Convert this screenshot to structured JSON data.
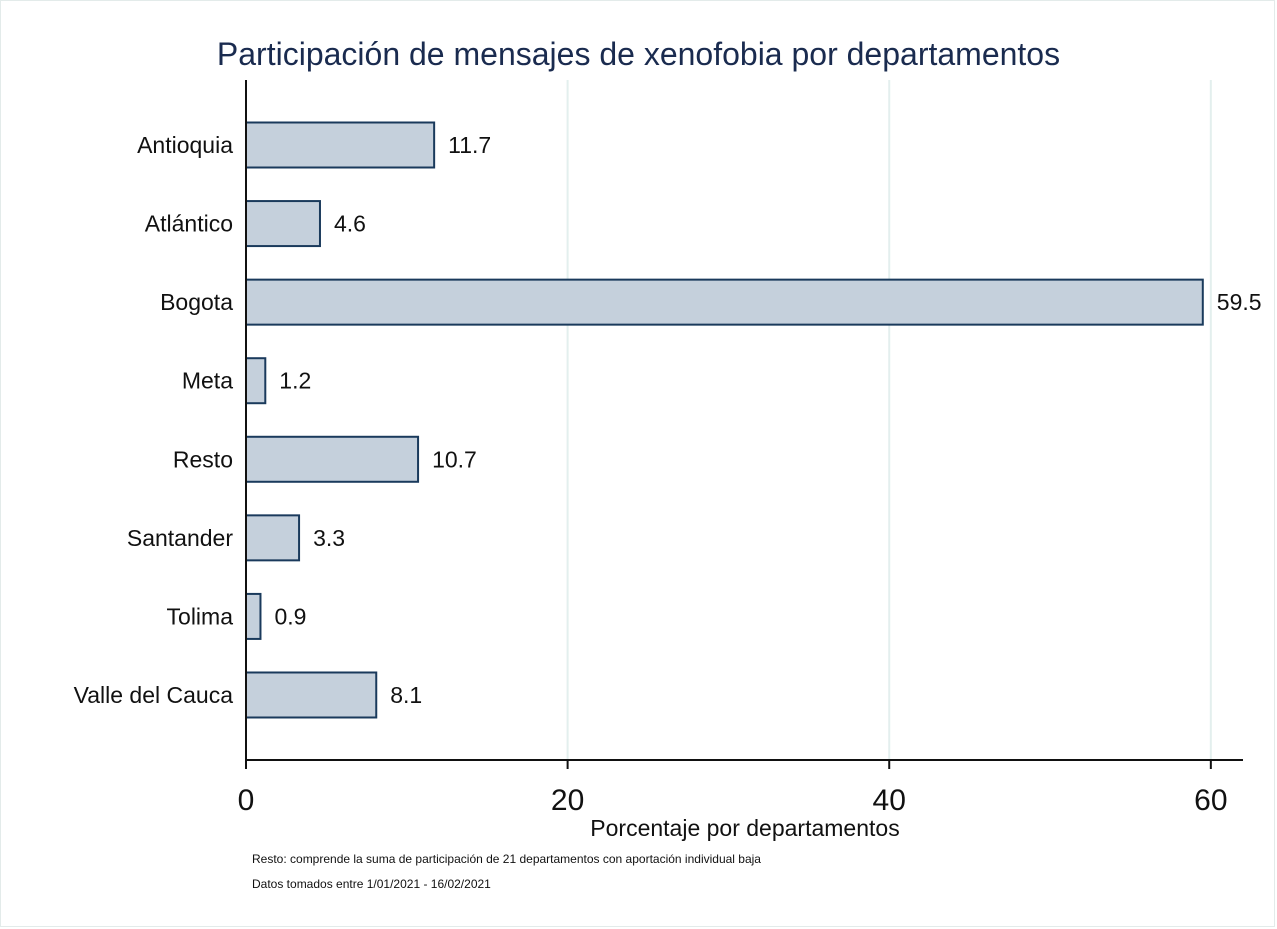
{
  "chart_data": {
    "type": "bar",
    "orientation": "horizontal",
    "title": "Participación de mensajes de xenofobia por departamentos",
    "xlabel": "Porcentaje por departamentos",
    "ylabel": "",
    "categories": [
      "Antioquia",
      "Atlántico",
      "Bogota",
      "Meta",
      "Resto",
      "Santander",
      "Tolima",
      "Valle del Cauca"
    ],
    "values": [
      11.7,
      4.6,
      59.5,
      1.2,
      10.7,
      3.3,
      0.9,
      8.1
    ],
    "value_labels": [
      "11.7",
      "4.6",
      "59.5",
      "1.2",
      "10.7",
      "3.3",
      "0.9",
      "8.1"
    ],
    "xlim": [
      0,
      62
    ],
    "xticks": [
      0,
      20,
      40,
      60
    ],
    "xtick_labels": [
      "0",
      "20",
      "40",
      "60"
    ],
    "grid": true,
    "legend": "none",
    "bar_fill": "#c5d0dc",
    "bar_stroke": "#1a3a5c",
    "grid_color": "#e3efee",
    "title_color": "#1a2b4f"
  },
  "notes": [
    "Resto: comprende la suma de participación de 21 departamentos con aportación individual baja",
    "Datos tomados entre 1/01/2021 - 16/02/2021"
  ]
}
